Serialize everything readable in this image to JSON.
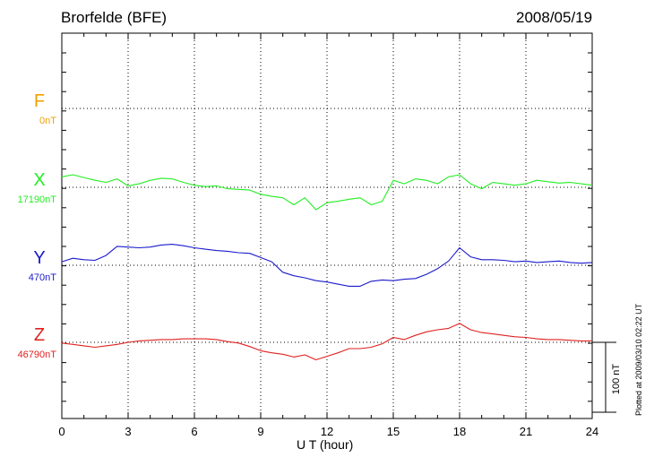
{
  "header": {
    "station": "Brorfelde (BFE)",
    "date": "2008/05/19"
  },
  "plotted_note": "Plotted at 2009/03/10 02:22 UT",
  "chart_data": {
    "type": "line",
    "title": "Brorfelde (BFE)",
    "xlabel": "U T (hour)",
    "x_ticks": [
      "0",
      "3",
      "6",
      "9",
      "12",
      "15",
      "18",
      "21",
      "24"
    ],
    "xlim": [
      0,
      24
    ],
    "grid": true,
    "scale_bar_label": "100 nT",
    "scale_bar_nT": 100,
    "series": [
      {
        "name": "F",
        "baseline_label": "0nT",
        "color": "#f0a000",
        "baseline_nT": 0,
        "points": []
      },
      {
        "name": "X",
        "baseline_label": "17190nT",
        "color": "#22ee22",
        "baseline_nT": 17190,
        "points": [
          [
            0,
            17205
          ],
          [
            0.5,
            17208
          ],
          [
            1,
            17204
          ],
          [
            1.5,
            17200
          ],
          [
            2,
            17197
          ],
          [
            2.5,
            17202
          ],
          [
            3,
            17192
          ],
          [
            3.5,
            17195
          ],
          [
            4,
            17200
          ],
          [
            4.5,
            17203
          ],
          [
            5,
            17202
          ],
          [
            5.5,
            17197
          ],
          [
            6,
            17193
          ],
          [
            6.5,
            17191
          ],
          [
            7,
            17192
          ],
          [
            7.5,
            17188
          ],
          [
            8,
            17187
          ],
          [
            8.5,
            17186
          ],
          [
            9,
            17180
          ],
          [
            9.5,
            17177
          ],
          [
            10,
            17175
          ],
          [
            10.5,
            17165
          ],
          [
            11,
            17175
          ],
          [
            11.5,
            17158
          ],
          [
            12,
            17168
          ],
          [
            12.5,
            17170
          ],
          [
            13,
            17173
          ],
          [
            13.5,
            17175
          ],
          [
            14,
            17165
          ],
          [
            14.5,
            17170
          ],
          [
            15,
            17200
          ],
          [
            15.5,
            17195
          ],
          [
            16,
            17202
          ],
          [
            16.5,
            17200
          ],
          [
            17,
            17195
          ],
          [
            17.5,
            17205
          ],
          [
            18,
            17208
          ],
          [
            18.5,
            17195
          ],
          [
            19,
            17188
          ],
          [
            19.5,
            17197
          ],
          [
            20,
            17195
          ],
          [
            20.5,
            17193
          ],
          [
            21,
            17195
          ],
          [
            21.5,
            17200
          ],
          [
            22,
            17198
          ],
          [
            22.5,
            17196
          ],
          [
            23,
            17197
          ],
          [
            23.5,
            17195
          ],
          [
            24,
            17193
          ]
        ]
      },
      {
        "name": "Y",
        "baseline_label": "470nT",
        "color": "#1a1acc",
        "baseline_nT": 470,
        "points": [
          [
            0,
            475
          ],
          [
            0.5,
            480
          ],
          [
            1,
            478
          ],
          [
            1.5,
            477
          ],
          [
            2,
            484
          ],
          [
            2.5,
            497
          ],
          [
            3,
            496
          ],
          [
            3.5,
            495
          ],
          [
            4,
            496
          ],
          [
            4.5,
            499
          ],
          [
            5,
            500
          ],
          [
            5.5,
            498
          ],
          [
            6,
            495
          ],
          [
            6.5,
            493
          ],
          [
            7,
            491
          ],
          [
            7.5,
            490
          ],
          [
            8,
            488
          ],
          [
            8.5,
            487
          ],
          [
            9,
            481
          ],
          [
            9.5,
            475
          ],
          [
            10,
            460
          ],
          [
            10.5,
            455
          ],
          [
            11,
            452
          ],
          [
            11.5,
            448
          ],
          [
            12,
            446
          ],
          [
            12.5,
            443
          ],
          [
            13,
            440
          ],
          [
            13.5,
            440
          ],
          [
            14,
            447
          ],
          [
            14.5,
            449
          ],
          [
            15,
            448
          ],
          [
            15.5,
            450
          ],
          [
            16,
            451
          ],
          [
            16.5,
            457
          ],
          [
            17,
            465
          ],
          [
            17.5,
            476
          ],
          [
            18,
            495
          ],
          [
            18.5,
            482
          ],
          [
            19,
            478
          ],
          [
            19.5,
            478
          ],
          [
            20,
            477
          ],
          [
            20.5,
            475
          ],
          [
            21,
            476
          ],
          [
            21.5,
            474
          ],
          [
            22,
            475
          ],
          [
            22.5,
            476
          ],
          [
            23,
            474
          ],
          [
            23.5,
            473
          ],
          [
            24,
            474
          ]
        ]
      },
      {
        "name": "Z",
        "baseline_label": "46790nT",
        "color": "#e02020",
        "baseline_nT": 46790,
        "points": [
          [
            0,
            46789
          ],
          [
            0.5,
            46787
          ],
          [
            1,
            46785
          ],
          [
            1.5,
            46783
          ],
          [
            2,
            46785
          ],
          [
            2.5,
            46787
          ],
          [
            3,
            46790
          ],
          [
            3.5,
            46792
          ],
          [
            4,
            46793
          ],
          [
            4.5,
            46794
          ],
          [
            5,
            46794
          ],
          [
            5.5,
            46795
          ],
          [
            6,
            46795
          ],
          [
            6.5,
            46795
          ],
          [
            7,
            46794
          ],
          [
            7.5,
            46791
          ],
          [
            8,
            46789
          ],
          [
            8.5,
            46784
          ],
          [
            9,
            46778
          ],
          [
            9.5,
            46775
          ],
          [
            10,
            46773
          ],
          [
            10.5,
            46769
          ],
          [
            11,
            46772
          ],
          [
            11.5,
            46765
          ],
          [
            12,
            46770
          ],
          [
            12.5,
            46775
          ],
          [
            13,
            46781
          ],
          [
            13.5,
            46781
          ],
          [
            14,
            46783
          ],
          [
            14.5,
            46788
          ],
          [
            15,
            46797
          ],
          [
            15.5,
            46794
          ],
          [
            16,
            46800
          ],
          [
            16.5,
            46805
          ],
          [
            17,
            46808
          ],
          [
            17.5,
            46810
          ],
          [
            18,
            46817
          ],
          [
            18.5,
            46808
          ],
          [
            19,
            46804
          ],
          [
            19.5,
            46802
          ],
          [
            20,
            46800
          ],
          [
            20.5,
            46798
          ],
          [
            21,
            46797
          ],
          [
            21.5,
            46795
          ],
          [
            22,
            46794
          ],
          [
            22.5,
            46794
          ],
          [
            23,
            46793
          ],
          [
            23.5,
            46792
          ],
          [
            24,
            46792
          ]
        ]
      }
    ]
  }
}
